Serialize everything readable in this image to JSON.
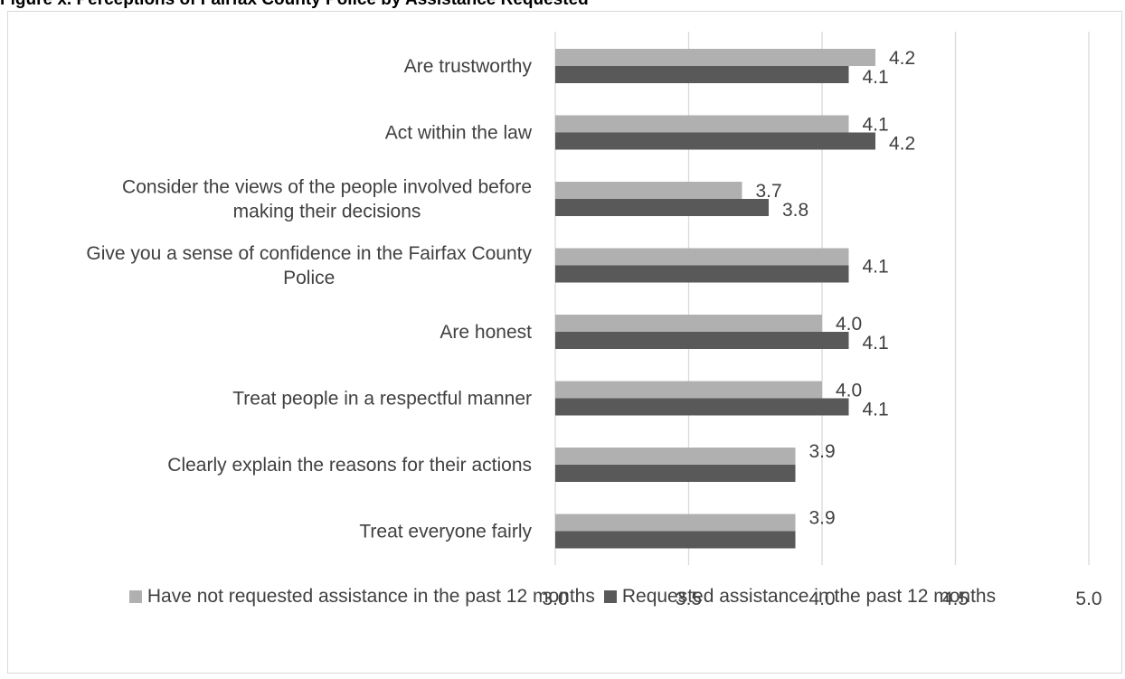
{
  "page": {
    "cut_title": "Figure x. Perceptions of Fairfax County Police by Assistance Requested"
  },
  "chart_data": {
    "type": "bar",
    "orientation": "horizontal",
    "title": "",
    "xlabel": "",
    "ylabel": "",
    "xlim": [
      3.0,
      5.0
    ],
    "ticks": [
      "3.0",
      "3.5",
      "4.0",
      "4.5",
      "5.0"
    ],
    "grid": true,
    "legend_position": "bottom",
    "categories": [
      "Are trustworthy",
      "Act within the law",
      "Consider the views of the people involved before making their decisions",
      "Give you a sense of confidence in the Fairfax County Police",
      "Are honest",
      "Treat people in a respectful manner",
      "Clearly explain the reasons for their actions",
      "Treat everyone fairly"
    ],
    "category_lines": [
      [
        "Are trustworthy"
      ],
      [
        "Act within the law"
      ],
      [
        "Consider the views of the people involved before",
        "making their decisions"
      ],
      [
        "Give you a sense of confidence in the Fairfax County",
        "Police"
      ],
      [
        "Are honest"
      ],
      [
        "Treat people in a respectful manner"
      ],
      [
        "Clearly explain the reasons for their actions"
      ],
      [
        "Treat everyone fairly"
      ]
    ],
    "series": [
      {
        "name": "Have not requested assistance in the past 12 months",
        "color": "#b0b0b0",
        "values": [
          4.2,
          4.1,
          3.7,
          4.1,
          4.0,
          4.0,
          3.9,
          3.9
        ]
      },
      {
        "name": "Requested assistance in the past 12 months",
        "color": "#595959",
        "values": [
          4.1,
          4.2,
          3.8,
          4.1,
          4.1,
          4.1,
          3.9,
          3.9
        ]
      }
    ],
    "data_labels": [
      [
        "4.2",
        "4.1"
      ],
      [
        "4.1",
        "4.2"
      ],
      [
        "3.7",
        "3.8"
      ],
      [
        "4.1"
      ],
      [
        "4.0",
        "4.1"
      ],
      [
        "4.0",
        "4.1"
      ],
      [
        "3.9"
      ],
      [
        "3.9"
      ]
    ]
  }
}
